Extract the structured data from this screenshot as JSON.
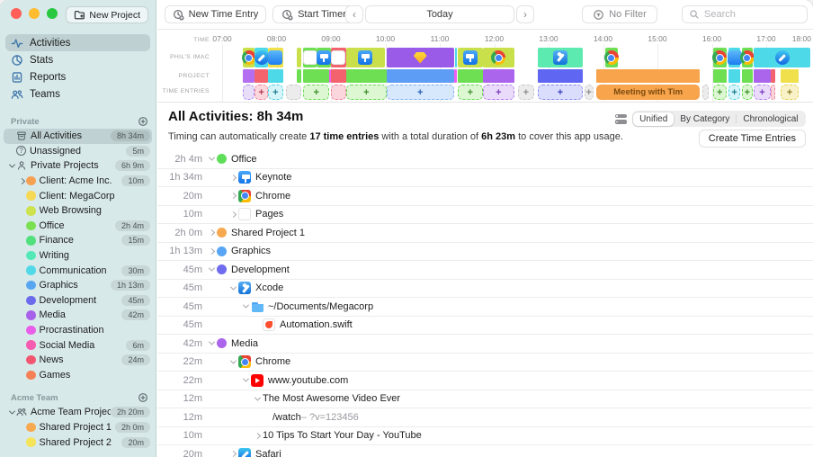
{
  "titlebar": {
    "new_project_label": "New Project"
  },
  "nav": {
    "items": [
      {
        "icon": "activities",
        "label": "Activities",
        "selected": true
      },
      {
        "icon": "stats",
        "label": "Stats",
        "selected": false
      },
      {
        "icon": "reports",
        "label": "Reports",
        "selected": false
      },
      {
        "icon": "teams",
        "label": "Teams",
        "selected": false
      }
    ]
  },
  "sidebar_sections": [
    {
      "title": "Private",
      "items": [
        {
          "icon": "archive",
          "label": "All Activities",
          "badge": "8h 34m",
          "selected": true,
          "indent": 0
        },
        {
          "icon": "question",
          "label": "Unassigned",
          "badge": "5m",
          "indent": 0
        },
        {
          "chevron": "down",
          "icon": "person",
          "label": "Private Projects",
          "badge": "6h 9m",
          "indent": 0
        },
        {
          "chevron": "right",
          "dot": "#f7a052",
          "label": "Client: Acme Inc.",
          "badge": "10m",
          "indent": 1
        },
        {
          "dot": "#f5d955",
          "label": "Client: MegaCorp",
          "indent": 1
        },
        {
          "dot": "#cde24c",
          "label": "Web Browsing",
          "indent": 1
        },
        {
          "dot": "#7ae051",
          "label": "Office",
          "badge": "2h 4m",
          "indent": 1
        },
        {
          "dot": "#52e07d",
          "label": "Finance",
          "badge": "15m",
          "indent": 1
        },
        {
          "dot": "#55e8b7",
          "label": "Writing",
          "indent": 1
        },
        {
          "dot": "#52d9e8",
          "label": "Communication",
          "badge": "30m",
          "indent": 1
        },
        {
          "dot": "#58a6f2",
          "label": "Graphics",
          "badge": "1h 13m",
          "indent": 1
        },
        {
          "dot": "#6b6bec",
          "label": "Development",
          "badge": "45m",
          "indent": 1
        },
        {
          "dot": "#a862ea",
          "label": "Media",
          "badge": "42m",
          "indent": 1
        },
        {
          "dot": "#e85ee8",
          "label": "Procrastination",
          "indent": 1
        },
        {
          "dot": "#f55bb0",
          "label": "Social Media",
          "badge": "6m",
          "indent": 1
        },
        {
          "dot": "#f25570",
          "label": "News",
          "badge": "24m",
          "indent": 1
        },
        {
          "dot": "#f58055",
          "label": "Games",
          "indent": 1
        }
      ]
    },
    {
      "title": "Acme Team",
      "items": [
        {
          "chevron": "down",
          "icon": "people",
          "label": "Acme Team Projects",
          "badge": "2h 20m",
          "indent": 0
        },
        {
          "dot": "#f7a94f",
          "label": "Shared Project 1",
          "badge": "2h 0m",
          "indent": 1
        },
        {
          "dot": "#f5e35a",
          "label": "Shared Project 2",
          "badge": "20m",
          "indent": 1
        }
      ]
    }
  ],
  "toolbar": {
    "new_time_entry": "New Time Entry",
    "start_timer": "Start Timer",
    "prev": "‹",
    "next": "›",
    "today": "Today",
    "no_filter": "No Filter",
    "search_placeholder": "Search"
  },
  "timeline": {
    "row_labels": [
      "TIME",
      "PHIL’S IMAC",
      "PROJECT",
      "TIME ENTRIES"
    ],
    "hour_labels": [
      "07:00",
      "08:00",
      "09:00",
      "10:00",
      "11:00",
      "12:00",
      "13:00",
      "14:00",
      "15:00",
      "16:00",
      "17:00",
      "18:00"
    ],
    "first_hour": 7,
    "device_segments": [
      {
        "start": 7.38,
        "end": 7.6,
        "color": "#c9e04b",
        "icon": "chrome"
      },
      {
        "start": 7.6,
        "end": 7.84,
        "color": "#4ed9e8",
        "icon": "safari"
      },
      {
        "start": 7.84,
        "end": 8.12,
        "color": "#f0e04c",
        "icon": "mail"
      },
      {
        "start": 8.37,
        "end": 8.45,
        "color": "#c9e04b"
      },
      {
        "start": 8.49,
        "end": 8.74,
        "color": "#6ede52",
        "icon": "pages"
      },
      {
        "start": 8.74,
        "end": 9.0,
        "color": "#6ede52",
        "icon": "keynote"
      },
      {
        "start": 9.0,
        "end": 9.28,
        "color": "#f2636e",
        "icon": "pages"
      },
      {
        "start": 9.28,
        "end": 9.99,
        "color": "#c9e04b",
        "icon": "keynote"
      },
      {
        "start": 10.02,
        "end": 11.26,
        "color": "#9a5ce8",
        "icon": "sketch"
      },
      {
        "start": 11.28,
        "end": 11.32,
        "color": "#4ed9e8"
      },
      {
        "start": 11.33,
        "end": 11.79,
        "color": "#c9e04b",
        "icon": "keynote"
      },
      {
        "start": 11.79,
        "end": 12.37,
        "color": "#c9e04b",
        "icon": "chrome"
      },
      {
        "start": 12.8,
        "end": 13.63,
        "color": "#5ceab0",
        "icon": "xcode"
      },
      {
        "start": 14.04,
        "end": 14.27,
        "color": "#6ede52",
        "icon": "chrome"
      },
      {
        "start": 16.02,
        "end": 16.27,
        "color": "#6ede52",
        "icon": "chrome"
      },
      {
        "start": 16.31,
        "end": 16.52,
        "color": "#4ed9e8",
        "icon": "mail"
      },
      {
        "start": 16.55,
        "end": 16.75,
        "color": "#6ede52",
        "icon": "chrome"
      },
      {
        "start": 16.77,
        "end": 17.81,
        "color": "#4ed9e8",
        "icon": "safari"
      }
    ],
    "project_segments": [
      {
        "start": 7.38,
        "end": 7.6,
        "color": "#b46ef2"
      },
      {
        "start": 7.6,
        "end": 7.84,
        "color": "#f2636e"
      },
      {
        "start": 7.84,
        "end": 8.12,
        "color": "#4ed9e8"
      },
      {
        "start": 8.37,
        "end": 8.45,
        "color": "#6ede52"
      },
      {
        "start": 8.49,
        "end": 8.97,
        "color": "#6ede52"
      },
      {
        "start": 8.97,
        "end": 9.0,
        "color": "#ee5ff0"
      },
      {
        "start": 9.0,
        "end": 9.28,
        "color": "#f2636e"
      },
      {
        "start": 9.28,
        "end": 10.02,
        "color": "#6ede52"
      },
      {
        "start": 10.02,
        "end": 11.26,
        "color": "#5e9df5"
      },
      {
        "start": 11.26,
        "end": 11.31,
        "color": "#ee5ff0"
      },
      {
        "start": 11.33,
        "end": 11.79,
        "color": "#6ede52"
      },
      {
        "start": 11.79,
        "end": 12.37,
        "color": "#ab64ec"
      },
      {
        "start": 12.8,
        "end": 13.63,
        "color": "#5f66f2"
      },
      {
        "start": 13.88,
        "end": 15.78,
        "color": "#f7a44c"
      },
      {
        "start": 16.02,
        "end": 16.27,
        "color": "#6ede52"
      },
      {
        "start": 16.31,
        "end": 16.52,
        "color": "#4ed9e8"
      },
      {
        "start": 16.55,
        "end": 16.75,
        "color": "#6ede52"
      },
      {
        "start": 16.77,
        "end": 17.08,
        "color": "#ab64ec"
      },
      {
        "start": 17.08,
        "end": 17.16,
        "color": "#f2636e"
      },
      {
        "start": 17.26,
        "end": 17.6,
        "color": "#f0e04c"
      }
    ],
    "entry_segments": [
      {
        "start": 7.38,
        "end": 7.6,
        "color": "lavender",
        "plus": false
      },
      {
        "start": 7.6,
        "end": 7.84,
        "color": "pink",
        "plus": true
      },
      {
        "start": 7.84,
        "end": 8.12,
        "color": "cyan",
        "plus": true
      },
      {
        "start": 8.18,
        "end": 8.45,
        "color": "gray",
        "plus": false
      },
      {
        "start": 8.49,
        "end": 8.97,
        "color": "green",
        "plus": true
      },
      {
        "start": 9.0,
        "end": 9.28,
        "color": "pink",
        "plus": false
      },
      {
        "start": 9.28,
        "end": 10.02,
        "color": "green",
        "plus": true
      },
      {
        "start": 10.02,
        "end": 11.26,
        "color": "blue",
        "plus": true
      },
      {
        "start": 11.33,
        "end": 11.79,
        "color": "green",
        "plus": true
      },
      {
        "start": 11.79,
        "end": 12.37,
        "color": "purple",
        "plus": true
      },
      {
        "start": 12.44,
        "end": 12.73,
        "color": "gray",
        "plus": true
      },
      {
        "start": 12.8,
        "end": 13.63,
        "color": "indigo",
        "plus": true
      },
      {
        "start": 13.66,
        "end": 13.82,
        "color": "gray",
        "plus": true
      },
      {
        "start": 13.88,
        "end": 15.78,
        "color": "orange",
        "plus": false,
        "label": "Meeting with Tim"
      },
      {
        "start": 15.82,
        "end": 15.95,
        "color": "gray",
        "plus": false
      },
      {
        "start": 16.02,
        "end": 16.27,
        "color": "green",
        "plus": true
      },
      {
        "start": 16.31,
        "end": 16.52,
        "color": "cyan",
        "plus": true
      },
      {
        "start": 16.55,
        "end": 16.75,
        "color": "green",
        "plus": true
      },
      {
        "start": 16.77,
        "end": 17.08,
        "color": "purple",
        "plus": true
      },
      {
        "start": 17.08,
        "end": 17.16,
        "color": "red",
        "plus": false
      },
      {
        "start": 17.26,
        "end": 17.6,
        "color": "yellow",
        "plus": true
      }
    ]
  },
  "palette": {
    "lavender": {
      "bg": "#e8defa",
      "border": "#ae8cf2",
      "plus": "#6a3fc0"
    },
    "pink": {
      "bg": "#fbd7dd",
      "border": "#f28399",
      "plus": "#b23a52"
    },
    "red": {
      "bg": "#fbd7dd",
      "border": "#f28399",
      "plus": "#b23a52"
    },
    "cyan": {
      "bg": "#d6f5fa",
      "border": "#52d2e2",
      "plus": "#1e7d8c"
    },
    "gray": {
      "bg": "#ececec",
      "border": "#c9c9c9",
      "plus": "#8e8e8e"
    },
    "green": {
      "bg": "#dcf7d2",
      "border": "#68da50",
      "plus": "#3f8f2c"
    },
    "blue": {
      "bg": "#d8e8fc",
      "border": "#82b2f5",
      "plus": "#2a62b8"
    },
    "indigo": {
      "bg": "#dbddfc",
      "border": "#878cf0",
      "plus": "#3a41c0"
    },
    "purple": {
      "bg": "#e9dbf9",
      "border": "#b37af0",
      "plus": "#7a3bbf"
    },
    "yellow": {
      "bg": "#f9f2c8",
      "border": "#e2d350",
      "plus": "#8a7d1e"
    },
    "orange": {
      "bg": "#f7a44c",
      "border": "#f7a44c",
      "plus": "#7d4a0e"
    }
  },
  "header": {
    "title": "All Activities: 8h 34m",
    "segments": [
      "Unified",
      "By Category",
      "Chronological"
    ],
    "selected_segment": "Unified",
    "description_parts": [
      {
        "text": "Timing can automatically create ",
        "bold": false
      },
      {
        "text": "17 time entries",
        "bold": true
      },
      {
        "text": " with a total duration of ",
        "bold": false
      },
      {
        "text": "6h 23m",
        "bold": true
      },
      {
        "text": " to cover this app usage.",
        "bold": false
      }
    ],
    "create_button": "Create Time Entries"
  },
  "activities": {
    "rows": [
      {
        "duration": "2h 4m",
        "chevron": "down",
        "level": 0,
        "dot": "#5ede59",
        "label": "Office"
      },
      {
        "duration": "1h 34m",
        "chevron": "right",
        "level": 1,
        "icon": "keynote",
        "label": "Keynote"
      },
      {
        "duration": "20m",
        "chevron": "right",
        "level": 1,
        "icon": "chrome",
        "label": "Chrome"
      },
      {
        "duration": "10m",
        "chevron": "right",
        "level": 1,
        "icon": "pages",
        "label": "Pages"
      },
      {
        "duration": "2h 0m",
        "chevron": "right",
        "level": 0,
        "dot": "#f7a94f",
        "label": "Shared Project 1"
      },
      {
        "duration": "1h 13m",
        "chevron": "right",
        "level": 0,
        "dot": "#57a5f4",
        "label": "Graphics"
      },
      {
        "duration": "45m",
        "chevron": "down",
        "level": 0,
        "dot": "#6f6cf0",
        "label": "Development"
      },
      {
        "duration": "45m",
        "chevron": "down",
        "level": 1,
        "icon": "xcode",
        "label": "Xcode"
      },
      {
        "duration": "45m",
        "chevron": "down",
        "level": 2,
        "icon": "folder",
        "label": "~/Documents/Megacorp"
      },
      {
        "duration": "45m",
        "chevron": null,
        "level": 3,
        "icon": "swift",
        "label": "Automation.swift"
      },
      {
        "duration": "42m",
        "chevron": "down",
        "level": 0,
        "dot": "#ab64ec",
        "label": "Media"
      },
      {
        "duration": "22m",
        "chevron": "down",
        "level": 1,
        "icon": "chrome",
        "label": "Chrome"
      },
      {
        "duration": "22m",
        "chevron": "down",
        "level": 2,
        "icon": "youtube",
        "label": "www.youtube.com"
      },
      {
        "duration": "12m",
        "chevron": "down",
        "level": 3,
        "icon": null,
        "label": "The Most Awesome Video Ever"
      },
      {
        "duration": "12m",
        "chevron": null,
        "level": 4,
        "icon": null,
        "label": "/watch",
        "label_muted": "– ?v=123456"
      },
      {
        "duration": "10m",
        "chevron": "right",
        "level": 3,
        "icon": null,
        "label": "10 Tips To Start Your Day - YouTube"
      },
      {
        "duration": "20m",
        "chevron": "right",
        "level": 1,
        "icon": "safari",
        "label": "Safari"
      }
    ]
  }
}
